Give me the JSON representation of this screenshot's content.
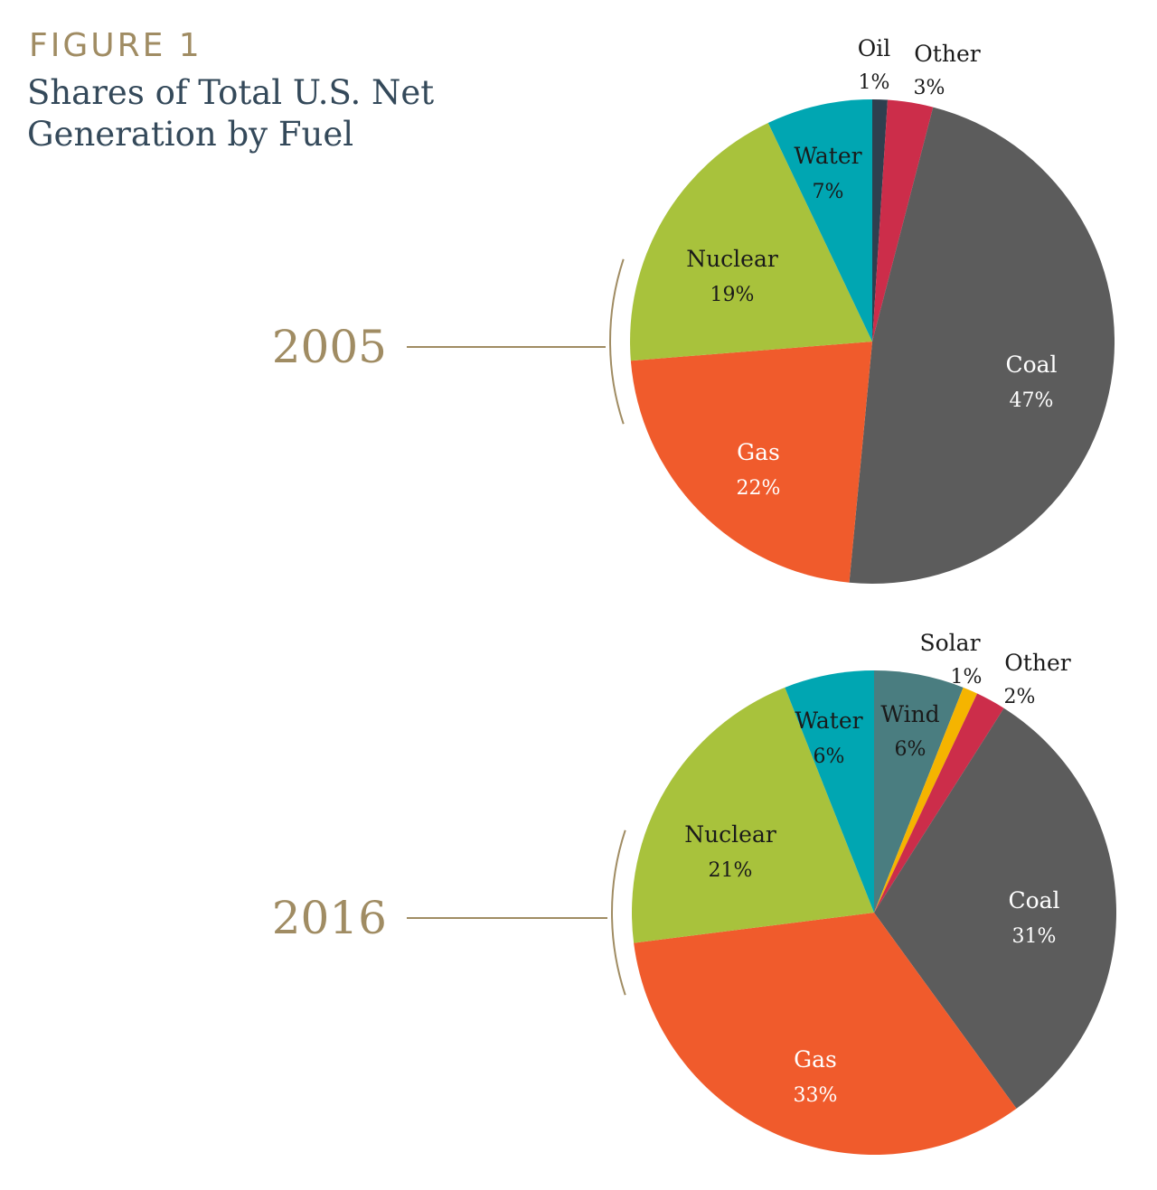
{
  "figure": {
    "label": "FIGURE 1",
    "title": "Shares of Total U.S. Net Generation by Fuel"
  },
  "colors": {
    "Oil": "#2f3f4f",
    "Other": "#cc2d4a",
    "Coal": "#5c5c5c",
    "Gas": "#f05b2c",
    "Nuclear": "#a8c23c",
    "Water": "#00a6b2",
    "Wind": "#4a7d80",
    "Solar": "#f5b400",
    "year": "#a08c63"
  },
  "chart_data": [
    {
      "type": "pie",
      "title": "2005",
      "slices": [
        {
          "label": "Oil",
          "value": 1,
          "display": "1%"
        },
        {
          "label": "Other",
          "value": 3,
          "display": "3%"
        },
        {
          "label": "Coal",
          "value": 47,
          "display": "47%"
        },
        {
          "label": "Gas",
          "value": 22,
          "display": "22%"
        },
        {
          "label": "Nuclear",
          "value": 19,
          "display": "19%"
        },
        {
          "label": "Water",
          "value": 7,
          "display": "7%"
        }
      ]
    },
    {
      "type": "pie",
      "title": "2016",
      "slices": [
        {
          "label": "Wind",
          "value": 6,
          "display": "6%"
        },
        {
          "label": "Solar",
          "value": 1,
          "display": "1%"
        },
        {
          "label": "Other",
          "value": 2,
          "display": "2%"
        },
        {
          "label": "Coal",
          "value": 31,
          "display": "31%"
        },
        {
          "label": "Gas",
          "value": 33,
          "display": "33%"
        },
        {
          "label": "Nuclear",
          "value": 21,
          "display": "21%"
        },
        {
          "label": "Water",
          "value": 6,
          "display": "6%"
        }
      ]
    }
  ]
}
